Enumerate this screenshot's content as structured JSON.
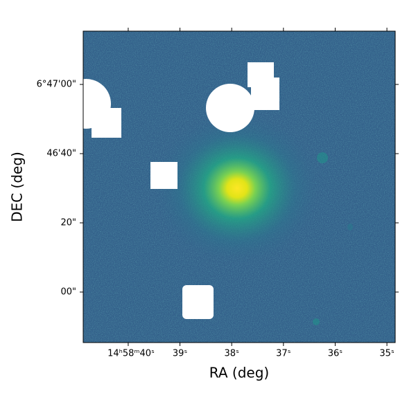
{
  "chart_data": {
    "type": "image",
    "xlabel": "RA (deg)",
    "ylabel": "DEC (deg)",
    "xlim": [
      40.87,
      34.84
    ],
    "xticks": [
      {
        "value": 40,
        "label": "14ʰ58ᵐ40ˢ"
      },
      {
        "value": 39,
        "label": "39ˢ"
      },
      {
        "value": 38,
        "label": "38ˢ"
      },
      {
        "value": 37,
        "label": "37ˢ"
      },
      {
        "value": 36,
        "label": "36ˢ"
      },
      {
        "value": 35,
        "label": "35ˢ"
      }
    ],
    "ylim": [
      -14.6,
      75.4
    ],
    "yticks": [
      {
        "value": 60,
        "label": "6°47'00\""
      },
      {
        "value": 40,
        "label": "46'40\""
      },
      {
        "value": 20,
        "label": "20\""
      },
      {
        "value": 0,
        "label": "00\""
      }
    ]
  }
}
